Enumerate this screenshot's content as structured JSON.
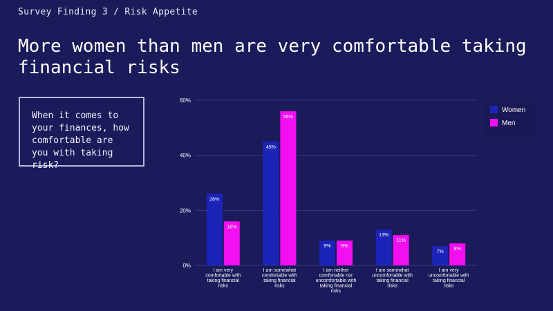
{
  "header": {
    "breadcrumb": "Survey Finding 3 / Risk Appetite",
    "title": "More women than men are very comfortable taking financial risks"
  },
  "question": {
    "text": "When it comes to your finances, how comfortable are you with taking risk?"
  },
  "colors": {
    "background": "#1b1a5a",
    "women": "#1c24b8",
    "men": "#f20ff0",
    "gridline": "#3a3a80"
  },
  "chart_data": {
    "type": "bar",
    "categories": [
      [
        "I am very",
        "comfortable with",
        "taking financial",
        "risks"
      ],
      [
        "I am somewhat",
        "comfortable with",
        "taking financial",
        "risks"
      ],
      [
        "I am neither",
        "comfortable nor",
        "uncomfortable with",
        "taking financial",
        "risks"
      ],
      [
        "I am somewhat",
        "uncomfortable with",
        "taking financial",
        "risks"
      ],
      [
        "I am very",
        "uncomfortable with",
        "taking financial",
        "risks"
      ]
    ],
    "series": [
      {
        "name": "Women",
        "values": [
          26,
          45,
          9,
          13,
          7
        ],
        "labels": [
          "26%",
          "45%",
          "9%",
          "13%",
          "7%"
        ]
      },
      {
        "name": "Men",
        "values": [
          16,
          56,
          9,
          11,
          8
        ],
        "labels": [
          "16%",
          "56%",
          "9%",
          "11%",
          "8%"
        ]
      }
    ],
    "y_ticks": [
      0,
      20,
      40,
      60
    ],
    "y_tick_labels": [
      "0%",
      "20%",
      "40%",
      "60%"
    ],
    "ylim": [
      0,
      60
    ],
    "grid": true,
    "legend_position": "top-right"
  }
}
